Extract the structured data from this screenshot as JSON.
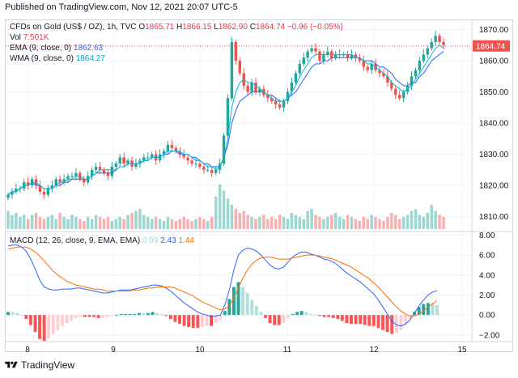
{
  "header": {
    "published": "Published on TradingView.com, Nov 12, 2021 20:07 UTC-5"
  },
  "legend": {
    "symbol": "CFDs on Gold (US$ / OZ), 1h, TVC",
    "o_label": "O",
    "o_value": "1865.71",
    "h_label": "H",
    "h_value": "1866.15",
    "l_label": "L",
    "l_value": "1862.90",
    "c_label": "C",
    "c_value": "1864.74",
    "change": "−0.96 (−0.05%)",
    "vol_label": "Vol",
    "vol_value": "7.501K",
    "ema_label": "EMA (9, close, 0)",
    "ema_value": "1862.63",
    "wma_label": "WMA (9, close, 0)",
    "wma_value": "1864.27"
  },
  "macd_legend": {
    "label": "MACD (12, 26, close, 9, EMA, EMA)",
    "hist": "0.99",
    "macd": "2.43",
    "signal": "1.44"
  },
  "footer": {
    "brand": "TradingView"
  },
  "colors": {
    "up": "#26a69a",
    "down": "#ef5350",
    "ema": "#2962ff",
    "wma": "#00bcd4",
    "macd_line": "#2962ff",
    "signal_line": "#ff6d00",
    "hist_up_strong": "#26a69a",
    "hist_up_weak": "#b2dfdb",
    "hist_dn_strong": "#ff5252",
    "hist_dn_weak": "#ffcdd2",
    "price_tag": "#ef5350"
  },
  "chart_data": [
    {
      "type": "candlestick",
      "title": "CFDs on Gold (US$ / OZ), 1h, TVC",
      "x_ticks": [
        "8",
        "9",
        "10",
        "11",
        "12",
        "15"
      ],
      "y_ticks": [
        1810,
        1820,
        1830,
        1840,
        1850,
        1860,
        1870
      ],
      "ylim": [
        1806,
        1873
      ],
      "last_price_label": "1864.74",
      "grid": true,
      "close": [
        1817,
        1818,
        1819,
        1819,
        1821,
        1820,
        1822,
        1820,
        1818,
        1817,
        1819,
        1820,
        1822,
        1821,
        1822,
        1823,
        1823,
        1824,
        1822,
        1821,
        1823,
        1825,
        1826,
        1825,
        1824,
        1823,
        1826,
        1827,
        1829,
        1827,
        1828,
        1826,
        1827,
        1828,
        1829,
        1829,
        1830,
        1828,
        1830,
        1831,
        1833,
        1832,
        1831,
        1830,
        1829,
        1828,
        1827,
        1827,
        1826,
        1825,
        1825,
        1824,
        1825,
        1827,
        1836,
        1848,
        1866,
        1860,
        1856,
        1852,
        1850,
        1853,
        1850,
        1851,
        1849,
        1848,
        1847,
        1846,
        1845,
        1847,
        1850,
        1853,
        1856,
        1859,
        1861,
        1863,
        1864,
        1863,
        1860,
        1862,
        1863,
        1861,
        1862,
        1862,
        1862,
        1861,
        1862,
        1861,
        1860,
        1858,
        1857,
        1859,
        1857,
        1856,
        1855,
        1853,
        1851,
        1849,
        1848,
        1850,
        1852,
        1855,
        1857,
        1860,
        1862,
        1864,
        1866,
        1868,
        1866,
        1865
      ],
      "volume": [
        9,
        7,
        8,
        6,
        7,
        5,
        7,
        8,
        6,
        5,
        6,
        7,
        5,
        8,
        6,
        5,
        7,
        6,
        5,
        4,
        6,
        5,
        7,
        6,
        5,
        6,
        4,
        5,
        6,
        5,
        7,
        8,
        9,
        10,
        7,
        6,
        5,
        6,
        5,
        4,
        6,
        5,
        4,
        5,
        6,
        5,
        4,
        5,
        6,
        5,
        4,
        6,
        16,
        22,
        19,
        15,
        12,
        10,
        8,
        9,
        7,
        6,
        5,
        6,
        7,
        5,
        6,
        5,
        7,
        6,
        5,
        8,
        7,
        6,
        5,
        9,
        10,
        7,
        6,
        5,
        6,
        7,
        8,
        6,
        5,
        7,
        6,
        5,
        4,
        6,
        5,
        7,
        6,
        5,
        4,
        6,
        8,
        7,
        5,
        6,
        7,
        9,
        10,
        7,
        6,
        8,
        12,
        9,
        7,
        6
      ],
      "ema": [
        1817,
        1818,
        1818,
        1819,
        1820,
        1820,
        1821,
        1820,
        1820,
        1819,
        1819,
        1819,
        1820,
        1820,
        1821,
        1821,
        1822,
        1822,
        1822,
        1822,
        1822,
        1823,
        1824,
        1824,
        1824,
        1824,
        1824,
        1825,
        1826,
        1826,
        1827,
        1827,
        1827,
        1827,
        1828,
        1828,
        1829,
        1829,
        1829,
        1830,
        1830,
        1831,
        1831,
        1830,
        1830,
        1830,
        1829,
        1829,
        1828,
        1827,
        1827,
        1826,
        1826,
        1826,
        1829,
        1833,
        1840,
        1844,
        1847,
        1848,
        1849,
        1850,
        1850,
        1850,
        1850,
        1849,
        1849,
        1848,
        1847,
        1847,
        1848,
        1849,
        1850,
        1852,
        1854,
        1856,
        1858,
        1859,
        1859,
        1860,
        1860,
        1861,
        1861,
        1861,
        1861,
        1861,
        1861,
        1861,
        1861,
        1860,
        1860,
        1860,
        1859,
        1858,
        1858,
        1857,
        1856,
        1854,
        1853,
        1852,
        1852,
        1853,
        1853,
        1855,
        1856,
        1858,
        1860,
        1861,
        1862,
        1863
      ],
      "wma": [
        1817,
        1818,
        1818,
        1819,
        1820,
        1820,
        1821,
        1821,
        1820,
        1819,
        1819,
        1819,
        1820,
        1821,
        1821,
        1822,
        1822,
        1823,
        1823,
        1822,
        1822,
        1823,
        1824,
        1825,
        1825,
        1825,
        1825,
        1825,
        1826,
        1826,
        1827,
        1827,
        1827,
        1827,
        1828,
        1828,
        1829,
        1829,
        1829,
        1830,
        1831,
        1831,
        1831,
        1831,
        1830,
        1830,
        1829,
        1828,
        1828,
        1827,
        1826,
        1826,
        1825,
        1826,
        1829,
        1835,
        1845,
        1850,
        1853,
        1854,
        1853,
        1853,
        1852,
        1851,
        1850,
        1849,
        1848,
        1847,
        1847,
        1847,
        1848,
        1850,
        1852,
        1855,
        1857,
        1859,
        1861,
        1862,
        1862,
        1862,
        1862,
        1862,
        1862,
        1862,
        1862,
        1862,
        1862,
        1861,
        1861,
        1860,
        1859,
        1859,
        1858,
        1857,
        1856,
        1855,
        1853,
        1852,
        1851,
        1850,
        1851,
        1852,
        1854,
        1856,
        1858,
        1860,
        1862,
        1864,
        1865,
        1864
      ]
    },
    {
      "type": "macd",
      "title": "MACD (12, 26, close, 9, EMA, EMA)",
      "y_ticks": [
        -2.0,
        0.0,
        2.0,
        4.0,
        6.0,
        8.0
      ],
      "ylim": [
        -2.5,
        8.2
      ],
      "macd": [
        6.9,
        7.0,
        7.0,
        6.8,
        6.4,
        5.6,
        4.6,
        3.5,
        2.8,
        2.6,
        2.5,
        2.5,
        2.6,
        2.6,
        2.6,
        2.7,
        2.7,
        2.6,
        2.5,
        2.4,
        2.3,
        2.2,
        2.2,
        2.3,
        2.4,
        2.5,
        2.5,
        2.5,
        2.6,
        2.7,
        2.8,
        2.9,
        3.0,
        3.0,
        2.9,
        2.7,
        2.4,
        2.0,
        1.6,
        1.2,
        0.9,
        0.6,
        0.3,
        0.1,
        0.0,
        -0.2,
        -0.1,
        0.0,
        1.0,
        2.5,
        4.5,
        6.0,
        6.5,
        6.7,
        6.6,
        6.4,
        6.0,
        5.5,
        5.0,
        4.7,
        4.6,
        4.8,
        5.3,
        5.8,
        6.1,
        6.3,
        6.3,
        6.1,
        6.0,
        5.8,
        5.6,
        5.5,
        5.3,
        5.0,
        4.6,
        4.2,
        3.9,
        3.6,
        3.3,
        2.9,
        2.5,
        2.1,
        1.5,
        0.8,
        0.1,
        -0.6,
        -1.0,
        -1.1,
        -0.9,
        -0.5,
        0.2,
        0.9,
        1.5,
        2.0,
        2.3,
        2.43
      ],
      "signal": [
        6.6,
        6.7,
        6.8,
        6.8,
        6.8,
        6.6,
        6.3,
        5.9,
        5.4,
        4.9,
        4.4,
        4.0,
        3.7,
        3.4,
        3.2,
        3.0,
        2.9,
        2.8,
        2.7,
        2.6,
        2.6,
        2.5,
        2.4,
        2.4,
        2.4,
        2.4,
        2.4,
        2.4,
        2.5,
        2.5,
        2.6,
        2.7,
        2.7,
        2.8,
        2.8,
        2.8,
        2.8,
        2.7,
        2.5,
        2.3,
        2.1,
        1.9,
        1.6,
        1.3,
        1.1,
        0.9,
        0.7,
        0.5,
        0.6,
        0.9,
        1.7,
        2.7,
        3.7,
        4.5,
        5.1,
        5.5,
        5.7,
        5.8,
        5.8,
        5.7,
        5.6,
        5.6,
        5.6,
        5.7,
        5.8,
        5.9,
        6.0,
        6.0,
        6.0,
        5.9,
        5.8,
        5.7,
        5.6,
        5.4,
        5.2,
        5.0,
        4.8,
        4.5,
        4.2,
        3.9,
        3.6,
        3.2,
        2.8,
        2.3,
        1.8,
        1.3,
        0.8,
        0.4,
        0.1,
        -0.1,
        -0.1,
        0.1,
        0.4,
        0.8,
        1.1,
        1.44
      ]
    }
  ]
}
